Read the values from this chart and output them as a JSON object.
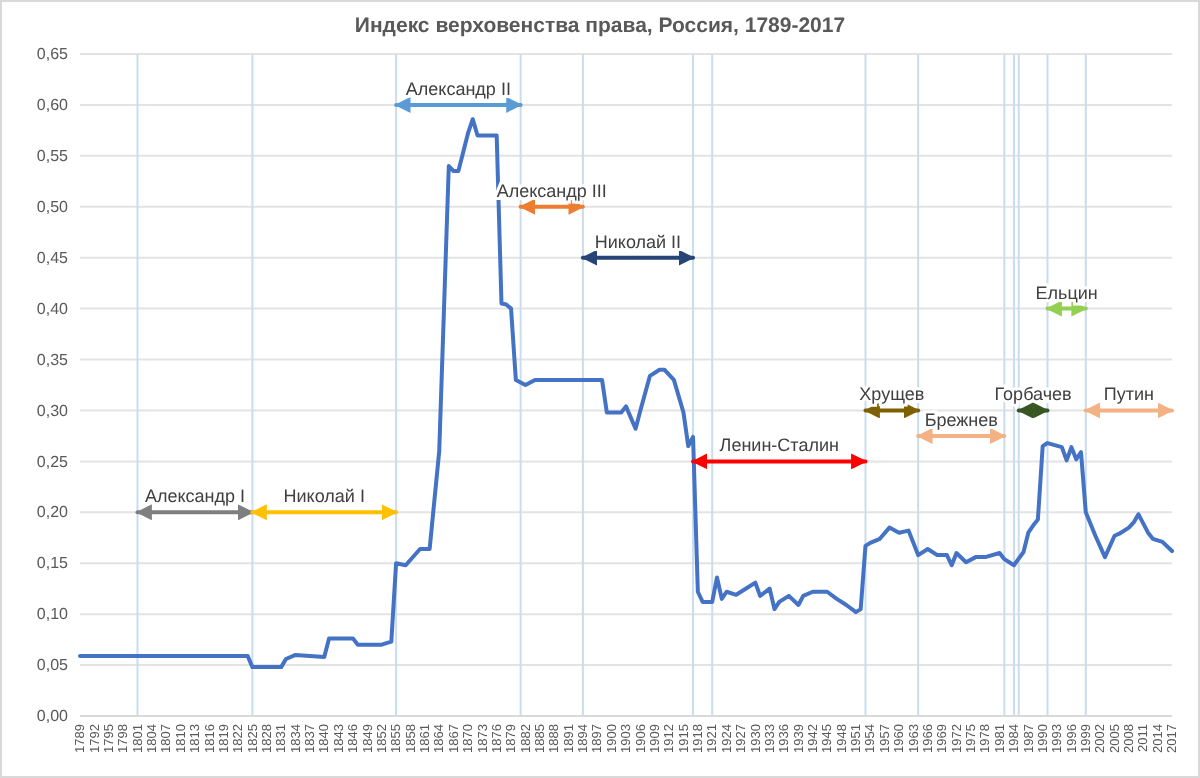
{
  "chart_data": {
    "type": "line",
    "title": "Индекс верховенства права, Россия, 1789-2017",
    "x": [
      1789,
      1824,
      1825,
      1831,
      1832,
      1834,
      1840,
      1841,
      1846,
      1847,
      1852,
      1854,
      1855,
      1857,
      1860,
      1862,
      1864,
      1866,
      1867,
      1868,
      1870,
      1871,
      1872,
      1876,
      1877,
      1878,
      1879,
      1880,
      1882,
      1884,
      1898,
      1899,
      1902,
      1903,
      1905,
      1906,
      1908,
      1910,
      1911,
      1913,
      1915,
      1916,
      1917,
      1918,
      1919,
      1921,
      1922,
      1923,
      1924,
      1926,
      1928,
      1930,
      1931,
      1933,
      1934,
      1935,
      1937,
      1939,
      1940,
      1942,
      1945,
      1947,
      1949,
      1951,
      1952,
      1953,
      1954,
      1956,
      1958,
      1960,
      1962,
      1964,
      1966,
      1968,
      1970,
      1971,
      1972,
      1974,
      1976,
      1978,
      1981,
      1982,
      1984,
      1986,
      1987,
      1988,
      1989,
      1990,
      1991,
      1994,
      1995,
      1996,
      1997,
      1998,
      1999,
      2001,
      2003,
      2005,
      2006,
      2008,
      2009,
      2010,
      2012,
      2013,
      2015,
      2017
    ],
    "series": [
      {
        "color": "#4472c4",
        "values": [
          0.059,
          0.059,
          0.048,
          0.048,
          0.056,
          0.06,
          0.058,
          0.076,
          0.076,
          0.07,
          0.07,
          0.073,
          0.15,
          0.148,
          0.164,
          0.164,
          0.26,
          0.54,
          0.535,
          0.535,
          0.572,
          0.586,
          0.57,
          0.57,
          0.405,
          0.404,
          0.4,
          0.33,
          0.325,
          0.33,
          0.33,
          0.298,
          0.298,
          0.304,
          0.282,
          0.3,
          0.334,
          0.34,
          0.34,
          0.33,
          0.298,
          0.265,
          0.274,
          0.122,
          0.112,
          0.112,
          0.136,
          0.115,
          0.122,
          0.119,
          0.125,
          0.131,
          0.118,
          0.125,
          0.105,
          0.112,
          0.118,
          0.109,
          0.118,
          0.122,
          0.122,
          0.115,
          0.109,
          0.102,
          0.105,
          0.167,
          0.17,
          0.174,
          0.185,
          0.18,
          0.182,
          0.158,
          0.164,
          0.158,
          0.158,
          0.148,
          0.16,
          0.151,
          0.156,
          0.156,
          0.16,
          0.154,
          0.148,
          0.161,
          0.18,
          0.187,
          0.193,
          0.265,
          0.268,
          0.264,
          0.251,
          0.264,
          0.252,
          0.259,
          0.2,
          0.177,
          0.156,
          0.177,
          0.179,
          0.185,
          0.19,
          0.198,
          0.18,
          0.174,
          0.171,
          0.162
        ]
      },
      {
        "name": "Александр I",
        "color": "#7f7f7f",
        "x": [
          1801,
          1825
        ],
        "values": [
          0.2,
          0.2
        ]
      },
      {
        "name": "Николай I",
        "color": "#ffc000",
        "x": [
          1825,
          1855
        ],
        "values": [
          0.2,
          0.2
        ]
      },
      {
        "name": "Александр II",
        "color": "#5b9bd5",
        "x": [
          1855,
          1881
        ],
        "values": [
          0.6,
          0.6
        ]
      },
      {
        "name": "Александр III",
        "color": "#ed7d31",
        "x": [
          1881,
          1894
        ],
        "values": [
          0.5,
          0.5
        ]
      },
      {
        "name": "Николай II",
        "color": "#264478",
        "x": [
          1894,
          1917
        ],
        "values": [
          0.45,
          0.45
        ]
      },
      {
        "name": "Ленин-Сталин",
        "color": "#ff0000",
        "x": [
          1917,
          1953
        ],
        "values": [
          0.25,
          0.25
        ]
      },
      {
        "name": "Хрущев",
        "color": "#7f6000",
        "x": [
          1953,
          1964
        ],
        "values": [
          0.3,
          0.3
        ]
      },
      {
        "name": "Брежнев",
        "color": "#f4b183",
        "x": [
          1964,
          1982
        ],
        "values": [
          0.275,
          0.275
        ]
      },
      {
        "name": "Горбачев",
        "color": "#375623",
        "x": [
          1985,
          1991
        ],
        "values": [
          0.3,
          0.3
        ]
      },
      {
        "name": "Ельцин",
        "color": "#92d050",
        "x": [
          1991,
          1999
        ],
        "values": [
          0.4,
          0.4
        ]
      },
      {
        "name": "Путин",
        "color": "#f4b183",
        "x": [
          1999,
          2017
        ],
        "values": [
          0.3,
          0.3
        ]
      }
    ],
    "xlim": [
      1789,
      2017
    ],
    "xticks": [
      1789,
      1792,
      1795,
      1798,
      1801,
      1804,
      1807,
      1810,
      1813,
      1816,
      1819,
      1822,
      1825,
      1828,
      1831,
      1834,
      1837,
      1840,
      1843,
      1846,
      1849,
      1852,
      1855,
      1858,
      1861,
      1864,
      1867,
      1870,
      1873,
      1876,
      1879,
      1882,
      1885,
      1888,
      1891,
      1894,
      1897,
      1900,
      1903,
      1906,
      1909,
      1912,
      1915,
      1918,
      1921,
      1924,
      1927,
      1930,
      1933,
      1936,
      1939,
      1942,
      1945,
      1948,
      1951,
      1954,
      1957,
      1960,
      1963,
      1966,
      1969,
      1972,
      1975,
      1978,
      1981,
      1984,
      1987,
      1990,
      1993,
      1996,
      1999,
      2002,
      2005,
      2008,
      2011,
      2014,
      2017
    ],
    "ylim": [
      0,
      0.65
    ],
    "yticks": [
      {
        "value": 0,
        "label": "0,00"
      },
      {
        "value": 0.05,
        "label": "0,05"
      },
      {
        "value": 0.1,
        "label": "0,10"
      },
      {
        "value": 0.15,
        "label": "0,15"
      },
      {
        "value": 0.2,
        "label": "0,20"
      },
      {
        "value": 0.25,
        "label": "0,25"
      },
      {
        "value": 0.3,
        "label": "0,30"
      },
      {
        "value": 0.35,
        "label": "0,35"
      },
      {
        "value": 0.4,
        "label": "0,40"
      },
      {
        "value": 0.45,
        "label": "0,45"
      },
      {
        "value": 0.5,
        "label": "0,50"
      },
      {
        "value": 0.55,
        "label": "0,55"
      },
      {
        "value": 0.6,
        "label": "0,60"
      },
      {
        "value": 0.65,
        "label": "0,65"
      }
    ],
    "grid": "y",
    "legend": false,
    "marker": "none",
    "line_style": "solid",
    "ref_lines": [
      {
        "axis": "x",
        "value": 1801,
        "color": "#c9dcf0"
      },
      {
        "axis": "x",
        "value": 1825,
        "color": "#c9dcf0"
      },
      {
        "axis": "x",
        "value": 1855,
        "color": "#c9dcf0"
      },
      {
        "axis": "x",
        "value": 1881,
        "color": "#c9dcf0"
      },
      {
        "axis": "x",
        "value": 1894,
        "color": "#c9dcf0"
      },
      {
        "axis": "x",
        "value": 1917,
        "color": "#c9dcf0"
      },
      {
        "axis": "x",
        "value": 1921,
        "color": "#c9dcf0"
      },
      {
        "axis": "x",
        "value": 1953,
        "color": "#c9dcf0"
      },
      {
        "axis": "x",
        "value": 1964,
        "color": "#c9dcf0"
      },
      {
        "axis": "x",
        "value": 1982,
        "color": "#c9dcf0"
      },
      {
        "axis": "x",
        "value": 1984,
        "color": "#c9dcf0"
      },
      {
        "axis": "x",
        "value": 1985,
        "color": "#c9dcf0"
      },
      {
        "axis": "x",
        "value": 1991,
        "color": "#c9dcf0"
      },
      {
        "axis": "x",
        "value": 1999,
        "color": "#c9dcf0"
      }
    ]
  }
}
